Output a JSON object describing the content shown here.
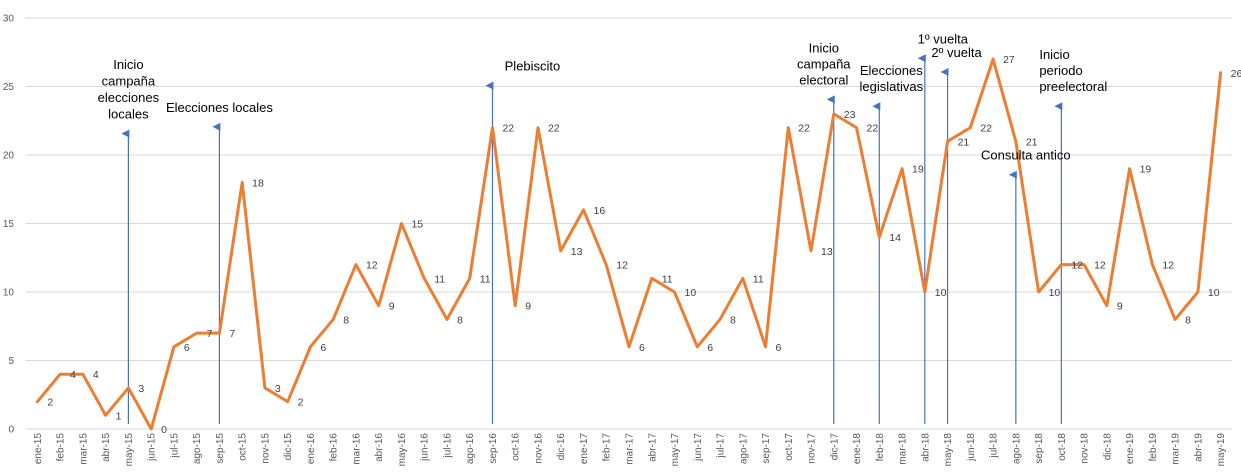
{
  "chart_data": {
    "type": "line",
    "title": "",
    "xlabel": "",
    "ylabel": "",
    "ylim": [
      0,
      30
    ],
    "yticks": [
      0,
      5,
      10,
      15,
      20,
      25,
      30
    ],
    "grid": "horizontal",
    "categories": [
      "ene-15",
      "feb-15",
      "mar-15",
      "abr-15",
      "may-15",
      "jun-15",
      "jul-15",
      "ago-15",
      "sep-15",
      "oct-15",
      "nov-15",
      "dic-15",
      "ene-16",
      "feb-16",
      "mar-16",
      "abr-16",
      "may-16",
      "jun-16",
      "jul-16",
      "ago-16",
      "sep-16",
      "oct-16",
      "nov-16",
      "dic-16",
      "ene-17",
      "feb-17",
      "mar-17",
      "abr-17",
      "may-17",
      "jun-17",
      "jul-17",
      "ago-17",
      "sep-17",
      "oct-17",
      "nov-17",
      "dic-17",
      "ene-18",
      "feb-18",
      "mar-18",
      "abr-18",
      "may-18",
      "jun-18",
      "jul-18",
      "ago-18",
      "sep-18",
      "oct-18",
      "nov-18",
      "dic-18",
      "ene-19",
      "feb-19",
      "mar-19",
      "abr-19",
      "may-19"
    ],
    "series": [
      {
        "color": "#ed7d31",
        "values": [
          2,
          4,
          4,
          1,
          3,
          0,
          6,
          7,
          7,
          18,
          3,
          2,
          6,
          8,
          12,
          9,
          15,
          11,
          8,
          11,
          22,
          9,
          22,
          13,
          16,
          12,
          6,
          11,
          10,
          6,
          8,
          11,
          6,
          22,
          13,
          23,
          22,
          14,
          19,
          10,
          21,
          22,
          27,
          21,
          10,
          12,
          12,
          9,
          19,
          12,
          8,
          10,
          26
        ]
      }
    ],
    "annotations": [
      {
        "category": "may-15",
        "y": 22,
        "label_lines": [
          "Inicio",
          "campaña",
          "elecciones",
          "locales"
        ]
      },
      {
        "category": "sep-15",
        "y": 22.5,
        "label_lines": [
          "Elecciones locales"
        ]
      },
      {
        "category": "sep-16",
        "y": 25.5,
        "label_lines": [
          "Plebiscito"
        ]
      },
      {
        "category": "dic-17",
        "y": 24.5,
        "label_lines": [
          "Inicio",
          "campaña",
          "electoral"
        ]
      },
      {
        "category": "feb-18",
        "y": 24,
        "label_lines": [
          "Elecciones",
          "legislativas"
        ]
      },
      {
        "category": "abr-18",
        "y": 27.5,
        "label_lines": [
          "1º vuelta"
        ]
      },
      {
        "category": "may-18",
        "y": 26.5,
        "label_lines": [
          "2º vuelta"
        ]
      },
      {
        "category": "ago-18",
        "y": 19,
        "label_lines": [
          "Consulta antico"
        ]
      },
      {
        "category": "oct-18",
        "y": 24,
        "label_lines": [
          "Inicio",
          "periodo",
          "preelectoral"
        ]
      }
    ],
    "colors": {
      "annotation_arrow": "#4472c4",
      "gridline": "#d9d9d9",
      "axis_text": "#595959"
    }
  }
}
